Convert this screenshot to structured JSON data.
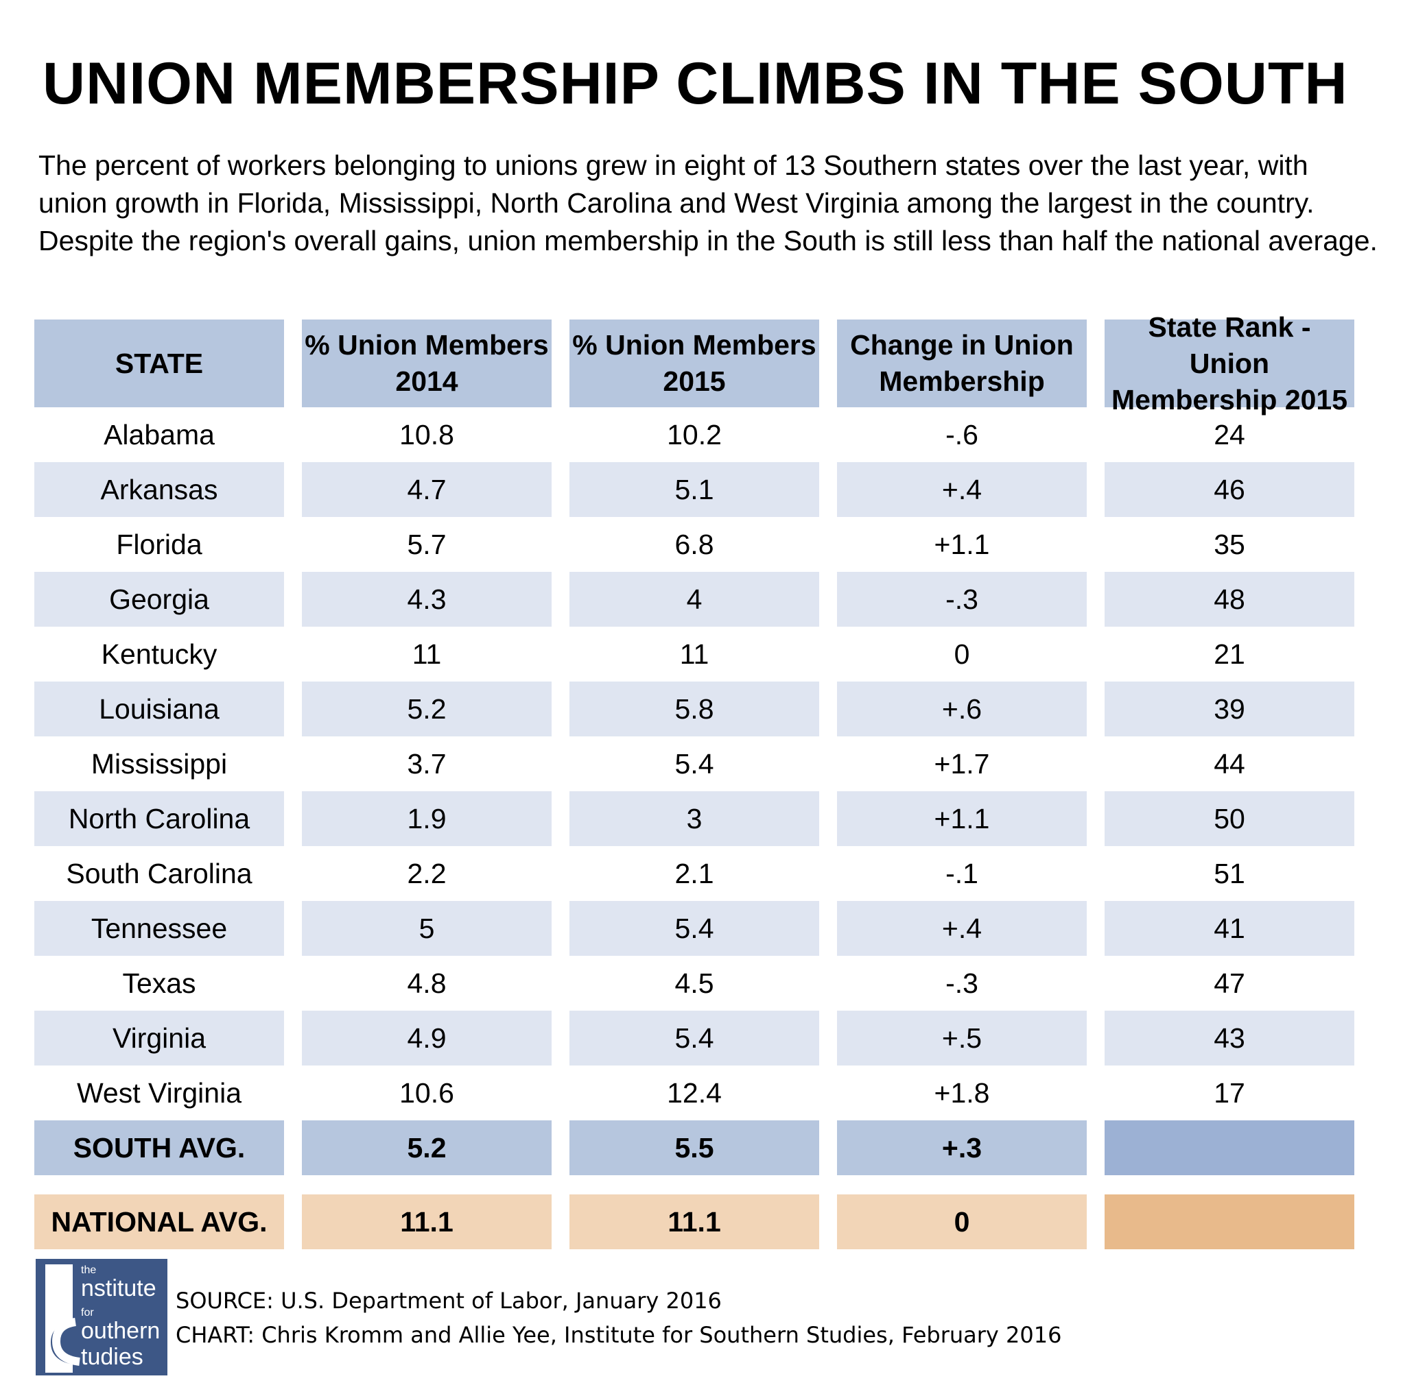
{
  "title": "UNION MEMBERSHIP CLIMBS IN THE SOUTH",
  "subtitle": "The percent of workers belonging to unions grew in eight of 13 Southern states over the last year, with union growth in Florida, Mississippi, North Carolina and West Virginia among the largest in the country. Despite the region's overall gains, union membership in the South is still less than half the national average.",
  "chart_data": {
    "type": "table",
    "columns": [
      "STATE",
      "% Union Members 2014",
      "% Union Members 2015",
      "Change in Union Membership",
      "State Rank - Union Membership 2015"
    ],
    "rows": [
      [
        "Alabama",
        "10.8",
        "10.2",
        "-.6",
        "24"
      ],
      [
        "Arkansas",
        "4.7",
        "5.1",
        "+.4",
        "46"
      ],
      [
        "Florida",
        "5.7",
        "6.8",
        "+1.1",
        "35"
      ],
      [
        "Georgia",
        "4.3",
        "4",
        "-.3",
        "48"
      ],
      [
        "Kentucky",
        "11",
        "11",
        "0",
        "21"
      ],
      [
        "Louisiana",
        "5.2",
        "5.8",
        "+.6",
        "39"
      ],
      [
        "Mississippi",
        "3.7",
        "5.4",
        "+1.7",
        "44"
      ],
      [
        "North Carolina",
        "1.9",
        "3",
        "+1.1",
        "50"
      ],
      [
        "South Carolina",
        "2.2",
        "2.1",
        "-.1",
        "51"
      ],
      [
        "Tennessee",
        "5",
        "5.4",
        "+.4",
        "41"
      ],
      [
        "Texas",
        "4.8",
        "4.5",
        "-.3",
        "47"
      ],
      [
        "Virginia",
        "4.9",
        "5.4",
        "+.5",
        "43"
      ],
      [
        "West Virginia",
        "10.6",
        "12.4",
        "+1.8",
        "17"
      ]
    ],
    "summary_rows": [
      [
        "SOUTH AVG.",
        "5.2",
        "5.5",
        "+.3",
        ""
      ],
      [
        "NATIONAL AVG.",
        "11.1",
        "11.1",
        "0",
        ""
      ]
    ],
    "colors": {
      "header": "#b6c6de",
      "band": "#dfe5f1",
      "south": "#b6c6de",
      "south_rank": "#9cb1d4",
      "national": "#f2d5b7",
      "national_rank": "#e8ba8b"
    }
  },
  "logo": {
    "line1": "the",
    "line2": "nstitute",
    "line3": "for",
    "line4": "outhern",
    "line5": "tudies"
  },
  "source": "SOURCE: U.S. Department of Labor, January 2016",
  "credit": "CHART: Chris Kromm and Allie Yee, Institute for Southern Studies, February 2016"
}
